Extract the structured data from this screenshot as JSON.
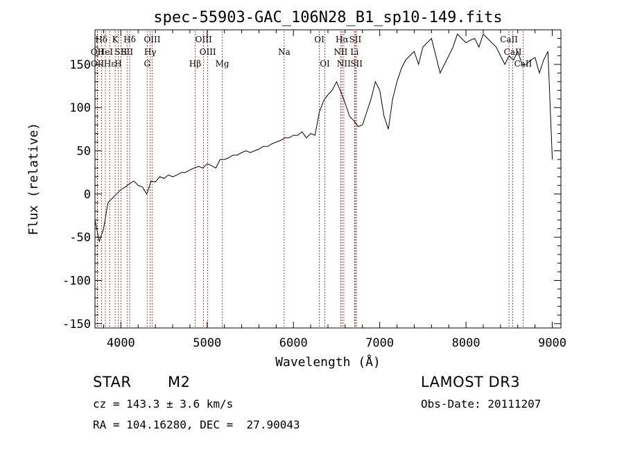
{
  "chart_data": {
    "type": "line",
    "title": "spec-55903-GAC_106N28_B1_sp10-149.fits",
    "xlabel": "Wavelength (Å)",
    "ylabel": "Flux (relative)",
    "xlim": [
      3700,
      9100
    ],
    "ylim": [
      -155,
      190
    ],
    "xticks": [
      4000,
      5000,
      6000,
      7000,
      8000,
      9000
    ],
    "yticks": [
      -150,
      -100,
      -50,
      0,
      50,
      100,
      150
    ],
    "grid": false,
    "series": [
      {
        "name": "flux",
        "x": [
          3700,
          3750,
          3800,
          3850,
          3900,
          3950,
          4000,
          4050,
          4100,
          4150,
          4200,
          4250,
          4300,
          4350,
          4400,
          4450,
          4500,
          4550,
          4600,
          4650,
          4700,
          4750,
          4800,
          4850,
          4900,
          4950,
          5000,
          5050,
          5100,
          5150,
          5200,
          5250,
          5300,
          5350,
          5400,
          5450,
          5500,
          5550,
          5600,
          5650,
          5700,
          5750,
          5800,
          5850,
          5900,
          5950,
          6000,
          6050,
          6100,
          6150,
          6200,
          6250,
          6300,
          6350,
          6400,
          6450,
          6500,
          6550,
          6600,
          6650,
          6700,
          6750,
          6800,
          6850,
          6900,
          6950,
          7000,
          7050,
          7100,
          7150,
          7200,
          7250,
          7300,
          7350,
          7400,
          7450,
          7500,
          7550,
          7600,
          7650,
          7700,
          7750,
          7800,
          7850,
          7900,
          7950,
          8000,
          8050,
          8100,
          8150,
          8200,
          8250,
          8300,
          8350,
          8400,
          8450,
          8500,
          8550,
          8600,
          8650,
          8700,
          8750,
          8800,
          8850,
          8900,
          8950,
          9000
        ],
        "values": [
          -30,
          -55,
          -40,
          -10,
          -5,
          0,
          5,
          8,
          12,
          15,
          10,
          8,
          0,
          15,
          14,
          20,
          18,
          22,
          20,
          22,
          25,
          25,
          28,
          30,
          32,
          30,
          35,
          33,
          30,
          40,
          40,
          42,
          45,
          45,
          48,
          50,
          48,
          50,
          52,
          55,
          55,
          58,
          60,
          62,
          65,
          65,
          68,
          68,
          72,
          65,
          70,
          68,
          95,
          108,
          115,
          120,
          130,
          118,
          105,
          90,
          85,
          78,
          80,
          95,
          110,
          130,
          120,
          90,
          75,
          110,
          130,
          145,
          155,
          160,
          165,
          150,
          170,
          175,
          180,
          160,
          140,
          150,
          160,
          170,
          185,
          180,
          175,
          178,
          180,
          170,
          185,
          180,
          175,
          170,
          160,
          150,
          160,
          155,
          165,
          150,
          150,
          155,
          158,
          140,
          155,
          165,
          40
        ]
      }
    ],
    "lines": [
      {
        "label": "Hδ",
        "wavelength": 3775,
        "row": 1
      },
      {
        "label": "OII",
        "wavelength": 3727,
        "row": 2
      },
      {
        "label": "OII",
        "wavelength": 3729,
        "row": 3
      },
      {
        "label": "HeI",
        "wavelength": 3820,
        "row": 2
      },
      {
        "label": "Hε",
        "wavelength": 3870,
        "row": 3
      },
      {
        "label": "K",
        "wavelength": 3934,
        "row": 1
      },
      {
        "label": "H",
        "wavelength": 3969,
        "row": 3
      },
      {
        "label": "SII",
        "wavelength": 4000,
        "row": 2
      },
      {
        "label": "Hδ",
        "wavelength": 4102,
        "row": 1
      },
      {
        "label": "SII",
        "wavelength": 4072,
        "row": 2
      },
      {
        "label": "OIII",
        "wavelength": 4363,
        "row": 1
      },
      {
        "label": "Hγ",
        "wavelength": 4340,
        "row": 2
      },
      {
        "label": "G",
        "wavelength": 4305,
        "row": 3
      },
      {
        "label": "Hβ",
        "wavelength": 4861,
        "row": 3
      },
      {
        "label": "OIII",
        "wavelength": 4959,
        "row": 1
      },
      {
        "label": "OIII",
        "wavelength": 5007,
        "row": 2
      },
      {
        "label": "Mg",
        "wavelength": 5175,
        "row": 3
      },
      {
        "label": "Na",
        "wavelength": 5893,
        "row": 2
      },
      {
        "label": "OI",
        "wavelength": 6300,
        "row": 1
      },
      {
        "label": "OI",
        "wavelength": 6364,
        "row": 3
      },
      {
        "label": "Hα",
        "wavelength": 6563,
        "row": 1
      },
      {
        "label": "NII",
        "wavelength": 6548,
        "row": 2
      },
      {
        "label": "NII",
        "wavelength": 6584,
        "row": 3
      },
      {
        "label": "SII",
        "wavelength": 6717,
        "row": 1
      },
      {
        "label": "Li",
        "wavelength": 6708,
        "row": 2
      },
      {
        "label": "SII",
        "wavelength": 6731,
        "row": 3
      },
      {
        "label": "CaII",
        "wavelength": 8498,
        "row": 1
      },
      {
        "label": "CaII",
        "wavelength": 8542,
        "row": 2
      },
      {
        "label": "CaII",
        "wavelength": 8662,
        "row": 3
      }
    ]
  },
  "info": {
    "object_class": "STAR",
    "subclass": "M2",
    "survey": "LAMOST DR3",
    "redshift": "cz = 143.3 ± 3.6 km/s",
    "obs_date": "Obs-Date: 20111207",
    "coords": "RA = 104.16280, DEC =  27.90043"
  }
}
